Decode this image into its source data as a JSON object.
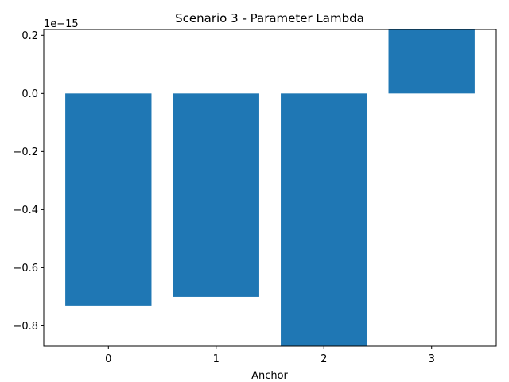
{
  "chart_data": {
    "type": "bar",
    "title": "Scenario 3 - Parameter Lambda",
    "xlabel": "Anchor",
    "ylabel": "",
    "scale_label": "1e−15",
    "categories": [
      "0",
      "1",
      "2",
      "3"
    ],
    "values": [
      -0.73,
      -0.7,
      -0.87,
      0.22
    ],
    "ylim": [
      -0.87,
      0.22
    ],
    "yticks": [
      0.2,
      0.0,
      -0.2,
      -0.4,
      -0.6,
      -0.8
    ],
    "ytick_labels": [
      "0.2",
      "0.0",
      "−0.2",
      "−0.4",
      "−0.6",
      "−0.8"
    ],
    "bar_color": "#1f77b4",
    "grid": false
  }
}
